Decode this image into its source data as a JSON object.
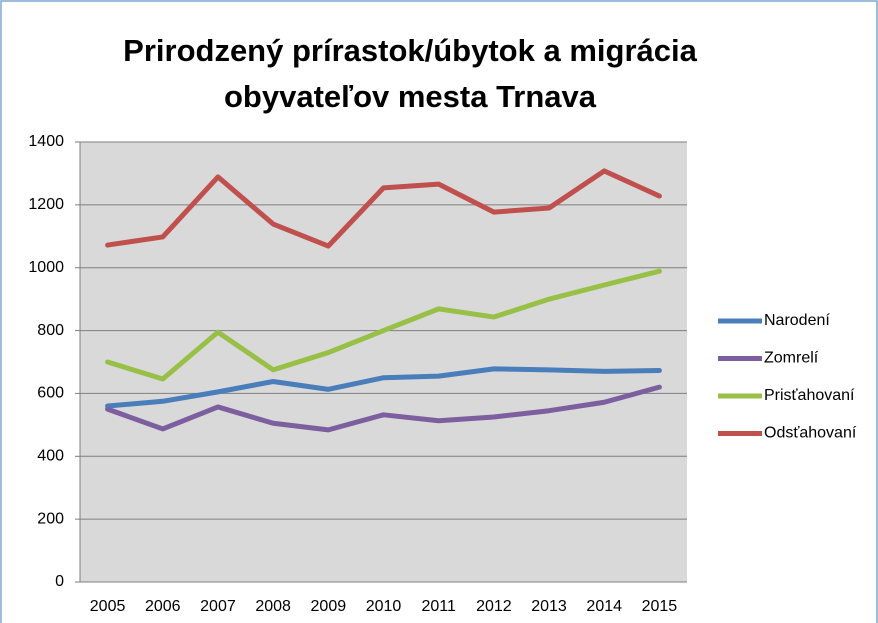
{
  "chart_data": {
    "type": "line",
    "title": "Prirodzený prírastok/úbytok a migrácia obyvateľov mesta Trnava",
    "categories": [
      "2005",
      "2006",
      "2007",
      "2008",
      "2009",
      "2010",
      "2011",
      "2012",
      "2013",
      "2014",
      "2015"
    ],
    "series": [
      {
        "name": "Narodení",
        "color": "#4a7ebb",
        "values": [
          560,
          575,
          605,
          638,
          613,
          650,
          655,
          678,
          675,
          670,
          673
        ]
      },
      {
        "name": "Zomrelí",
        "color": "#7d5fa0",
        "values": [
          550,
          487,
          557,
          505,
          484,
          532,
          513,
          525,
          545,
          572,
          620
        ]
      },
      {
        "name": "Prisťahovaní",
        "color": "#98c046",
        "values": [
          700,
          646,
          795,
          675,
          730,
          800,
          869,
          843,
          900,
          945,
          989
        ]
      },
      {
        "name": "Odsťahovaní",
        "color": "#c0504d",
        "values": [
          1072,
          1098,
          1289,
          1139,
          1069,
          1254,
          1266,
          1177,
          1190,
          1308,
          1228
        ]
      }
    ],
    "ylim": [
      0,
      1400
    ],
    "yticks": [
      0,
      200,
      400,
      600,
      800,
      1000,
      1200,
      1400
    ],
    "grid": true,
    "legend": "right"
  }
}
